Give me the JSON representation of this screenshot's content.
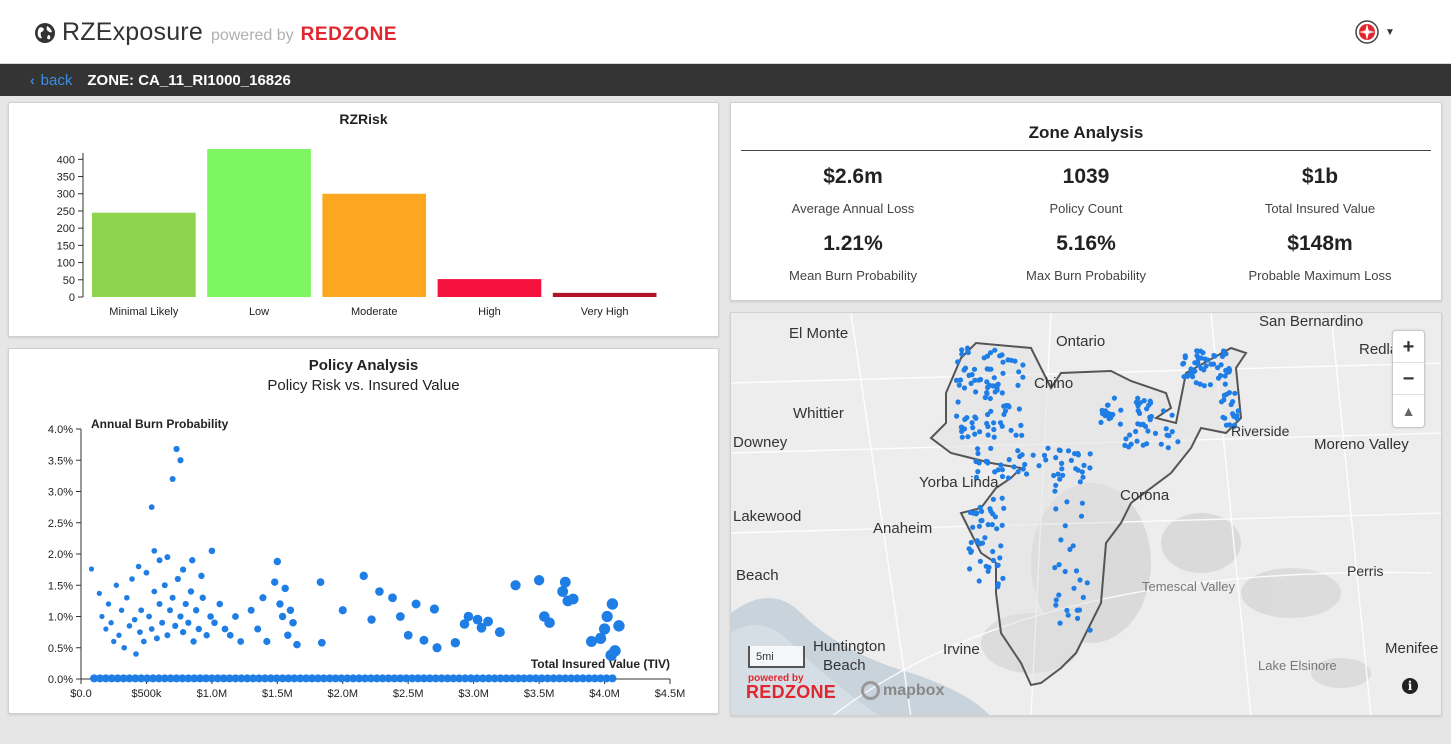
{
  "header": {
    "brand": "RZExposure",
    "powered_by": "powered by",
    "brand_partner": "REDZONE"
  },
  "zonebar": {
    "back_label": "back",
    "zone_title": "ZONE: CA_11_RI1000_16826"
  },
  "rzrisk": {
    "chart_data": {
      "type": "bar",
      "title": "RZRisk",
      "categories": [
        "Minimal Likely",
        "Low",
        "Moderate",
        "High",
        "Very High"
      ],
      "values": [
        245,
        430,
        300,
        52,
        12
      ],
      "colors": [
        "#8ed44c",
        "#7ef562",
        "#fda61f",
        "#f5123e",
        "#b01228"
      ],
      "ylim": [
        0,
        430
      ],
      "yticks": [
        0,
        50,
        100,
        150,
        200,
        250,
        300,
        350,
        400
      ],
      "xlabel": "",
      "ylabel": ""
    }
  },
  "policy": {
    "chart_data": {
      "type": "scatter",
      "title": "Policy Analysis",
      "subtitle": "Policy Risk vs. Insured Value",
      "xlabel": "Total Insured Value (TIV)",
      "ylabel": "Annual Burn Probability",
      "xlim": [
        0,
        4500000
      ],
      "ylim": [
        0,
        0.04
      ],
      "xticks": [
        0,
        500000,
        1000000,
        1500000,
        2000000,
        2500000,
        3000000,
        3500000,
        4000000,
        4500000
      ],
      "xtick_labels": [
        "$0.0",
        "$500k",
        "$1.0M",
        "$1.5M",
        "$2.0M",
        "$2.5M",
        "$3.0M",
        "$3.5M",
        "$4.0M",
        "$4.5M"
      ],
      "yticks": [
        0,
        0.005,
        0.01,
        0.015,
        0.02,
        0.025,
        0.03,
        0.035,
        0.04
      ],
      "ytick_labels": [
        "0.0%",
        "0.5%",
        "1.0%",
        "1.5%",
        "2.0%",
        "2.5%",
        "3.0%",
        "3.5%",
        "4.0%"
      ],
      "point_color": "#1f7de6",
      "points": [
        [
          80000,
          0.0176
        ],
        [
          140000,
          0.0137
        ],
        [
          160000,
          0.01
        ],
        [
          190000,
          0.008
        ],
        [
          210000,
          0.012
        ],
        [
          230000,
          0.009
        ],
        [
          250000,
          0.006
        ],
        [
          270000,
          0.015
        ],
        [
          290000,
          0.007
        ],
        [
          310000,
          0.011
        ],
        [
          330000,
          0.005
        ],
        [
          350000,
          0.013
        ],
        [
          370000,
          0.0085
        ],
        [
          390000,
          0.016
        ],
        [
          410000,
          0.0095
        ],
        [
          420000,
          0.004
        ],
        [
          440000,
          0.018
        ],
        [
          450000,
          0.0075
        ],
        [
          460000,
          0.011
        ],
        [
          480000,
          0.006
        ],
        [
          500000,
          0.017
        ],
        [
          520000,
          0.01
        ],
        [
          540000,
          0.008
        ],
        [
          560000,
          0.014
        ],
        [
          580000,
          0.0065
        ],
        [
          600000,
          0.012
        ],
        [
          620000,
          0.009
        ],
        [
          640000,
          0.015
        ],
        [
          660000,
          0.007
        ],
        [
          680000,
          0.011
        ],
        [
          700000,
          0.013
        ],
        [
          720000,
          0.0085
        ],
        [
          740000,
          0.016
        ],
        [
          760000,
          0.01
        ],
        [
          780000,
          0.0075
        ],
        [
          800000,
          0.012
        ],
        [
          820000,
          0.009
        ],
        [
          840000,
          0.014
        ],
        [
          860000,
          0.006
        ],
        [
          880000,
          0.011
        ],
        [
          900000,
          0.008
        ],
        [
          930000,
          0.013
        ],
        [
          960000,
          0.007
        ],
        [
          990000,
          0.01
        ],
        [
          1020000,
          0.009
        ],
        [
          1060000,
          0.012
        ],
        [
          1100000,
          0.008
        ],
        [
          1140000,
          0.007
        ],
        [
          1180000,
          0.01
        ],
        [
          1220000,
          0.006
        ],
        [
          540000,
          0.0275
        ],
        [
          560000,
          0.0205
        ],
        [
          600000,
          0.019
        ],
        [
          660000,
          0.0195
        ],
        [
          700000,
          0.032
        ],
        [
          730000,
          0.0368
        ],
        [
          760000,
          0.035
        ],
        [
          780000,
          0.0175
        ],
        [
          850000,
          0.019
        ],
        [
          920000,
          0.0165
        ],
        [
          1000000,
          0.0205
        ],
        [
          1300000,
          0.011
        ],
        [
          1350000,
          0.008
        ],
        [
          1390000,
          0.013
        ],
        [
          1420000,
          0.006
        ],
        [
          1480000,
          0.0155
        ],
        [
          1500000,
          0.0188
        ],
        [
          1520000,
          0.012
        ],
        [
          1540000,
          0.01
        ],
        [
          1560000,
          0.0145
        ],
        [
          1580000,
          0.007
        ],
        [
          1600000,
          0.011
        ],
        [
          1620000,
          0.009
        ],
        [
          1650000,
          0.0055
        ],
        [
          1830000,
          0.0155
        ],
        [
          1840000,
          0.0058
        ],
        [
          2000000,
          0.011
        ],
        [
          2160000,
          0.0165
        ],
        [
          2220000,
          0.0095
        ],
        [
          2280000,
          0.014
        ],
        [
          2380000,
          0.013
        ],
        [
          2440000,
          0.01
        ],
        [
          2500000,
          0.007
        ],
        [
          2560000,
          0.012
        ],
        [
          2620000,
          0.0062
        ],
        [
          2700000,
          0.0112
        ],
        [
          2720000,
          0.005
        ],
        [
          2860000,
          0.0058
        ],
        [
          2930000,
          0.0088
        ],
        [
          2960000,
          0.01
        ],
        [
          3030000,
          0.0095
        ],
        [
          3060000,
          0.0082
        ],
        [
          3110000,
          0.0092
        ],
        [
          3200000,
          0.0075
        ],
        [
          3320000,
          0.015
        ],
        [
          3500000,
          0.0158
        ],
        [
          3540000,
          0.01
        ],
        [
          3580000,
          0.009
        ],
        [
          3680000,
          0.014
        ],
        [
          3720000,
          0.0125
        ],
        [
          3700000,
          0.0155
        ],
        [
          3760000,
          0.0128
        ],
        [
          3900000,
          0.006
        ],
        [
          3970000,
          0.0065
        ],
        [
          4000000,
          0.008
        ],
        [
          4020000,
          0.01
        ],
        [
          4060000,
          0.012
        ],
        [
          4080000,
          0.0045
        ],
        [
          4110000,
          0.0085
        ],
        [
          4050000,
          0.0038
        ]
      ]
    }
  },
  "zone_analysis": {
    "title": "Zone Analysis",
    "stats": [
      {
        "value": "$2.6m",
        "label": "Average Annual Loss"
      },
      {
        "value": "1039",
        "label": "Policy Count"
      },
      {
        "value": "$1b",
        "label": "Total Insured Value"
      },
      {
        "value": "1.21%",
        "label": "Mean Burn Probability"
      },
      {
        "value": "5.16%",
        "label": "Max Burn Probability"
      },
      {
        "value": "$148m",
        "label": "Probable Maximum Loss"
      }
    ]
  },
  "map": {
    "labels": [
      "El Monte",
      "Ontario",
      "San Bernardino",
      "Redlands",
      "Chino",
      "Whittier",
      "Riverside",
      "Moreno Valley",
      "Downey",
      "Yorba Linda",
      "Corona",
      "Lakewood",
      "Anaheim",
      "Temescal Valley",
      "Perris",
      "Beach",
      "Huntington",
      "Beach",
      "Irvine",
      "Menifee",
      "Lake Elsinore"
    ],
    "zoom_in": "+",
    "zoom_out": "−",
    "compass": "▲",
    "scale_label": "5mi",
    "powered_by": "powered by",
    "brand": "REDZONE",
    "mapbox": "mapbox",
    "info": "i"
  }
}
